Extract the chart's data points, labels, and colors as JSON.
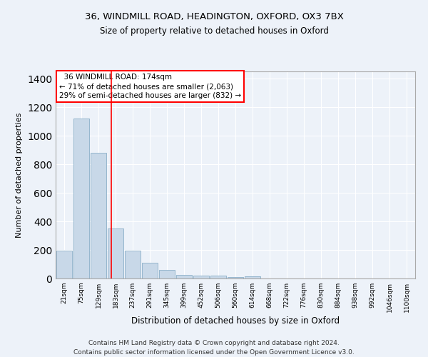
{
  "title1": "36, WINDMILL ROAD, HEADINGTON, OXFORD, OX3 7BX",
  "title2": "Size of property relative to detached houses in Oxford",
  "xlabel": "Distribution of detached houses by size in Oxford",
  "ylabel": "Number of detached properties",
  "footer": "Contains HM Land Registry data © Crown copyright and database right 2024.\nContains public sector information licensed under the Open Government Licence v3.0.",
  "categories": [
    "21sqm",
    "75sqm",
    "129sqm",
    "183sqm",
    "237sqm",
    "291sqm",
    "345sqm",
    "399sqm",
    "452sqm",
    "506sqm",
    "560sqm",
    "614sqm",
    "668sqm",
    "722sqm",
    "776sqm",
    "830sqm",
    "884sqm",
    "938sqm",
    "992sqm",
    "1046sqm",
    "1100sqm"
  ],
  "values": [
    195,
    1120,
    880,
    350,
    195,
    110,
    58,
    25,
    22,
    18,
    10,
    15,
    0,
    0,
    0,
    0,
    0,
    0,
    0,
    0,
    0
  ],
  "bar_color": "#c8d8e8",
  "bar_edge_color": "#8aafc8",
  "vline_x": 2.75,
  "vline_color": "red",
  "annotation_text": "  36 WINDMILL ROAD: 174sqm  \n← 71% of detached houses are smaller (2,063)\n29% of semi-detached houses are larger (832) →",
  "annotation_box_color": "white",
  "annotation_box_edge": "red",
  "ylim": [
    0,
    1450
  ],
  "background_color": "#edf2f9",
  "grid_color": "#ffffff",
  "title1_fontsize": 9.5,
  "title2_fontsize": 8.5,
  "footer_fontsize": 6.5,
  "annot_fontsize": 7.5,
  "ylabel_fontsize": 8,
  "xlabel_fontsize": 8.5
}
